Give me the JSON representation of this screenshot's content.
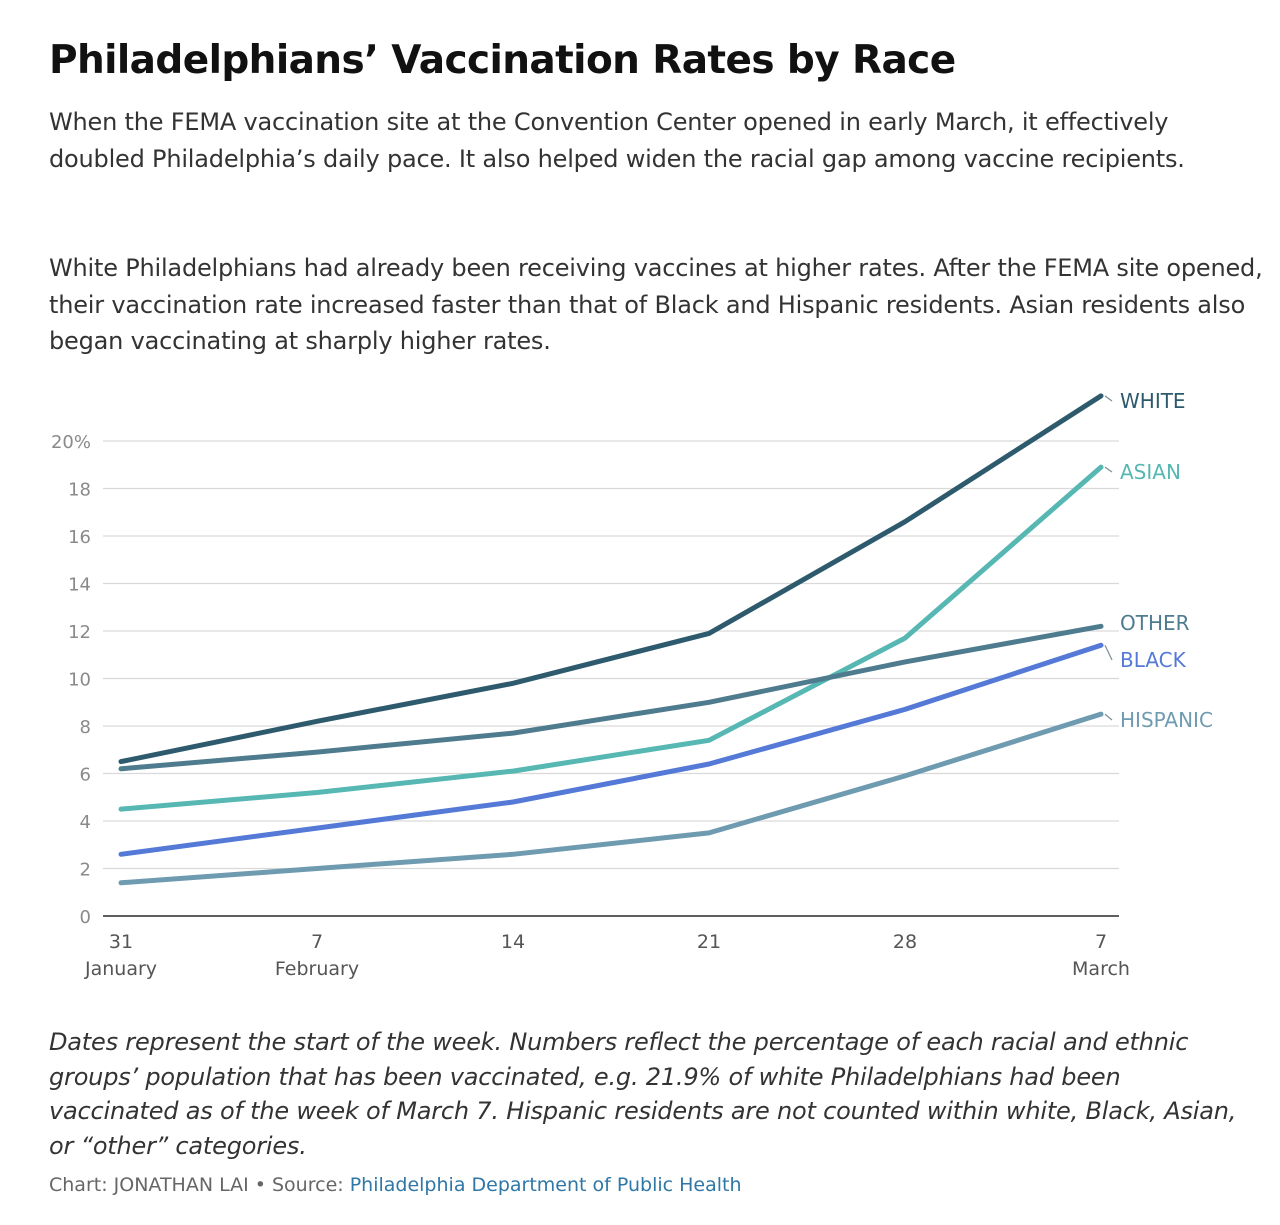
{
  "header": {
    "title": "Philadelphians’ Vaccination Rates by Race",
    "paragraph1": "When the FEMA vaccination site at the Convention Center opened in early March, it effectively doubled Philadelphia’s daily pace. It also helped widen the racial gap among vaccine recipients.",
    "paragraph2": "White Philadelphians had already been receiving vaccines at higher rates. After the FEMA site opened, their vaccination rate increased faster than that of Black and Hispanic residents. Asian residents also began vaccinating at sharply higher rates."
  },
  "chart_data": {
    "type": "line",
    "title": "Philadelphians’ Vaccination Rates by Race",
    "xlabel": "",
    "ylabel": "",
    "x": [
      0,
      1,
      2,
      3,
      4,
      5
    ],
    "x_tick_labels": [
      {
        "day": "31",
        "month": "January"
      },
      {
        "day": "7",
        "month": "February"
      },
      {
        "day": "14",
        "month": ""
      },
      {
        "day": "21",
        "month": ""
      },
      {
        "day": "28",
        "month": ""
      },
      {
        "day": "7",
        "month": "March"
      }
    ],
    "y_tick_labels": [
      "0",
      "2",
      "4",
      "6",
      "8",
      "10",
      "12",
      "14",
      "16",
      "18",
      "20%"
    ],
    "ylim": [
      0,
      20
    ],
    "yticks": [
      0,
      2,
      4,
      6,
      8,
      10,
      12,
      14,
      16,
      18,
      20
    ],
    "grid": true,
    "legend": "direct labels at line ends (right)",
    "series": [
      {
        "name": "HISPANIC",
        "color": "#6f9bb0",
        "values": [
          1.4,
          2.0,
          2.6,
          3.5,
          5.9,
          8.5
        ]
      },
      {
        "name": "BLACK",
        "color": "#5479d6",
        "values": [
          2.6,
          3.7,
          4.8,
          6.4,
          8.7,
          11.4
        ]
      },
      {
        "name": "ASIAN",
        "color": "#56b7b3",
        "values": [
          4.5,
          5.2,
          6.1,
          7.4,
          11.7,
          18.9
        ]
      },
      {
        "name": "OTHER",
        "color": "#4f7b8e",
        "values": [
          6.2,
          6.9,
          7.7,
          9.0,
          10.7,
          12.2
        ]
      },
      {
        "name": "WHITE",
        "color": "#2e5a6d",
        "values": [
          6.5,
          8.2,
          9.8,
          11.9,
          16.6,
          21.9
        ]
      }
    ]
  },
  "footer": {
    "note": "Dates represent the start of the week. Numbers reflect the percentage of each racial and ethnic groups’ population that has been vaccinated, e.g. 21.9% of white Philadelphians had been vaccinated as of the week of March 7. Hispanic residents are not counted within white, Black, Asian, or “other” categories.",
    "credit_prefix": "Chart: JONATHAN LAI • Source: ",
    "source_link": "Philadelphia Department of Public Health"
  }
}
